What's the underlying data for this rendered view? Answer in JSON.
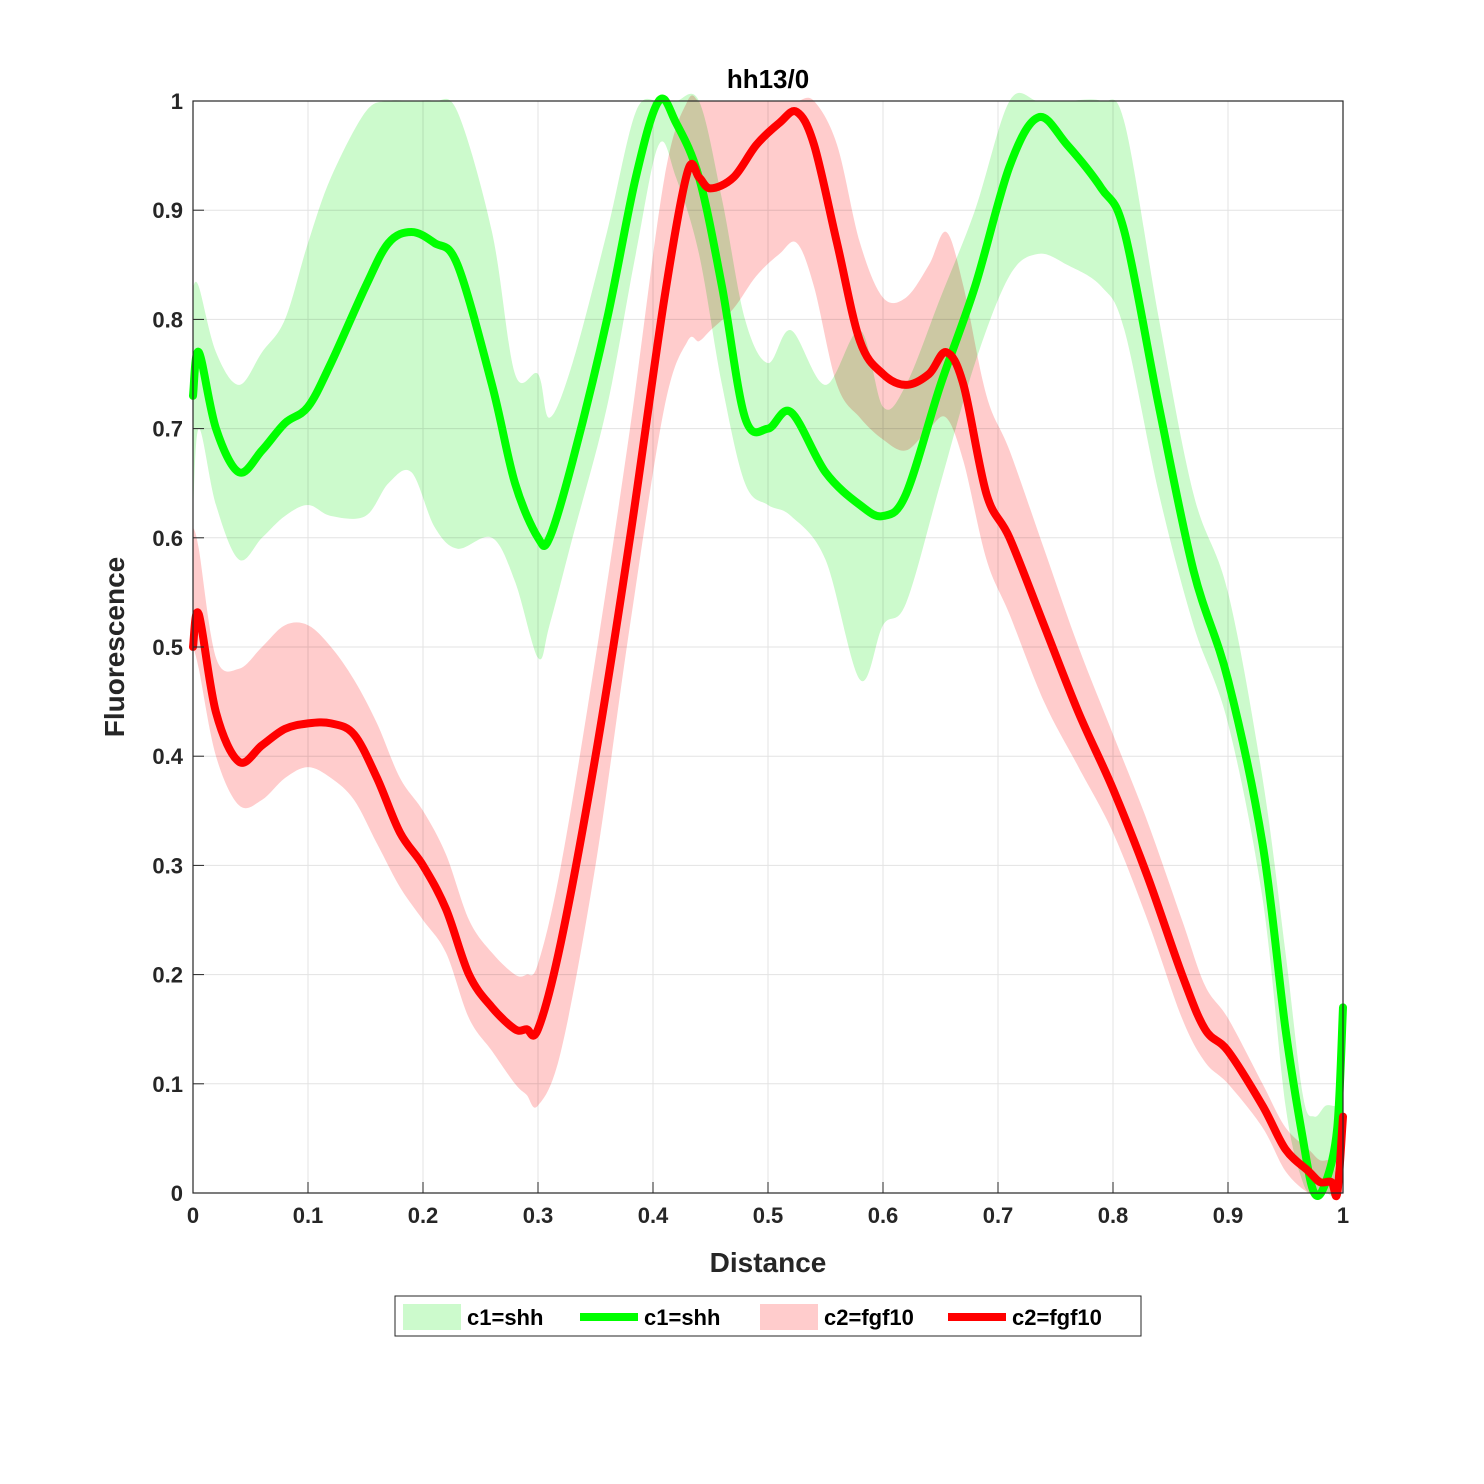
{
  "chart_data": {
    "type": "line",
    "title": "hh13/0",
    "xlabel": "Distance",
    "ylabel": "Fluorescence",
    "xlim": [
      0,
      1
    ],
    "ylim": [
      0,
      1
    ],
    "grid": true,
    "legend_placement": "bottom-outside",
    "x_ticks": [
      "0",
      "0.1",
      "0.2",
      "0.3",
      "0.4",
      "0.5",
      "0.6",
      "0.7",
      "0.8",
      "0.9",
      "1"
    ],
    "y_ticks": [
      "0",
      "0.1",
      "0.2",
      "0.3",
      "0.4",
      "0.5",
      "0.6",
      "0.7",
      "0.8",
      "0.9",
      "1"
    ],
    "legend": [
      {
        "label": "c1=shh",
        "kind": "band",
        "color": "#ccfacc"
      },
      {
        "label": "c1=shh",
        "kind": "line",
        "color": "#00ff00"
      },
      {
        "label": "c2=fgf10",
        "kind": "band",
        "color": "#ffcccc"
      },
      {
        "label": "c2=fgf10",
        "kind": "line",
        "color": "#ff0000"
      }
    ],
    "series": [
      {
        "name": "c1=shh",
        "color": "#00ff00",
        "band_color": "#ccfacc",
        "x": [
          0,
          0.005,
          0.02,
          0.04,
          0.06,
          0.08,
          0.1,
          0.12,
          0.15,
          0.17,
          0.19,
          0.21,
          0.23,
          0.26,
          0.28,
          0.3,
          0.31,
          0.33,
          0.36,
          0.385,
          0.405,
          0.42,
          0.44,
          0.46,
          0.48,
          0.5,
          0.52,
          0.55,
          0.58,
          0.6,
          0.62,
          0.65,
          0.68,
          0.71,
          0.735,
          0.76,
          0.79,
          0.81,
          0.84,
          0.87,
          0.9,
          0.93,
          0.95,
          0.965,
          0.975,
          0.985,
          0.995,
          1.0
        ],
        "y": [
          0.73,
          0.77,
          0.7,
          0.66,
          0.68,
          0.705,
          0.72,
          0.76,
          0.83,
          0.87,
          0.88,
          0.87,
          0.85,
          0.74,
          0.65,
          0.6,
          0.6,
          0.67,
          0.8,
          0.93,
          1.0,
          0.98,
          0.93,
          0.83,
          0.71,
          0.7,
          0.715,
          0.66,
          0.63,
          0.62,
          0.64,
          0.74,
          0.83,
          0.94,
          0.985,
          0.96,
          0.92,
          0.88,
          0.72,
          0.57,
          0.47,
          0.32,
          0.15,
          0.05,
          0.0,
          0.01,
          0.06,
          0.17
        ],
        "lower": [
          0.62,
          0.7,
          0.63,
          0.58,
          0.6,
          0.62,
          0.63,
          0.62,
          0.62,
          0.65,
          0.66,
          0.61,
          0.59,
          0.6,
          0.56,
          0.49,
          0.52,
          0.6,
          0.72,
          0.86,
          0.96,
          0.93,
          0.86,
          0.74,
          0.65,
          0.63,
          0.62,
          0.58,
          0.47,
          0.52,
          0.54,
          0.65,
          0.76,
          0.84,
          0.86,
          0.85,
          0.83,
          0.79,
          0.64,
          0.52,
          0.43,
          0.27,
          0.08,
          0.01,
          0.0,
          0.0,
          0.0,
          0.05
        ],
        "upper": [
          0.83,
          0.83,
          0.77,
          0.74,
          0.77,
          0.8,
          0.87,
          0.93,
          0.99,
          1.0,
          1.0,
          1.0,
          0.99,
          0.88,
          0.75,
          0.75,
          0.71,
          0.76,
          0.88,
          0.99,
          1.0,
          1.0,
          1.0,
          0.91,
          0.8,
          0.76,
          0.79,
          0.74,
          0.79,
          0.72,
          0.74,
          0.82,
          0.9,
          1.0,
          1.0,
          1.0,
          1.0,
          0.98,
          0.8,
          0.64,
          0.55,
          0.38,
          0.22,
          0.09,
          0.07,
          0.08,
          0.08,
          0.09
        ]
      },
      {
        "name": "c2=fgf10",
        "color": "#ff0000",
        "band_color": "#ffcccc",
        "x": [
          0,
          0.005,
          0.02,
          0.04,
          0.06,
          0.08,
          0.1,
          0.12,
          0.14,
          0.16,
          0.18,
          0.2,
          0.22,
          0.24,
          0.26,
          0.28,
          0.29,
          0.3,
          0.32,
          0.35,
          0.38,
          0.41,
          0.43,
          0.44,
          0.45,
          0.47,
          0.49,
          0.51,
          0.525,
          0.54,
          0.56,
          0.58,
          0.6,
          0.62,
          0.64,
          0.655,
          0.67,
          0.69,
          0.71,
          0.74,
          0.77,
          0.8,
          0.83,
          0.86,
          0.88,
          0.9,
          0.93,
          0.95,
          0.97,
          0.98,
          0.99,
          0.995,
          1.0
        ],
        "y": [
          0.5,
          0.53,
          0.44,
          0.395,
          0.41,
          0.425,
          0.43,
          0.43,
          0.42,
          0.38,
          0.33,
          0.3,
          0.26,
          0.2,
          0.17,
          0.15,
          0.15,
          0.15,
          0.23,
          0.4,
          0.6,
          0.82,
          0.935,
          0.93,
          0.92,
          0.93,
          0.96,
          0.98,
          0.99,
          0.96,
          0.87,
          0.78,
          0.75,
          0.74,
          0.75,
          0.77,
          0.74,
          0.64,
          0.6,
          0.52,
          0.44,
          0.37,
          0.29,
          0.2,
          0.15,
          0.13,
          0.08,
          0.04,
          0.02,
          0.01,
          0.01,
          0.0,
          0.07
        ],
        "lower": [
          0.5,
          0.48,
          0.4,
          0.355,
          0.36,
          0.38,
          0.39,
          0.38,
          0.36,
          0.32,
          0.28,
          0.25,
          0.22,
          0.16,
          0.13,
          0.1,
          0.09,
          0.08,
          0.13,
          0.3,
          0.52,
          0.72,
          0.78,
          0.78,
          0.79,
          0.81,
          0.84,
          0.86,
          0.87,
          0.83,
          0.74,
          0.71,
          0.69,
          0.68,
          0.7,
          0.71,
          0.67,
          0.58,
          0.53,
          0.45,
          0.39,
          0.33,
          0.25,
          0.16,
          0.12,
          0.1,
          0.06,
          0.02,
          0.0,
          0.0,
          0.0,
          0.0,
          0.0
        ],
        "upper": [
          0.61,
          0.59,
          0.49,
          0.48,
          0.5,
          0.52,
          0.52,
          0.5,
          0.47,
          0.43,
          0.38,
          0.35,
          0.31,
          0.25,
          0.22,
          0.2,
          0.2,
          0.21,
          0.3,
          0.49,
          0.7,
          0.93,
          1.0,
          1.0,
          1.0,
          1.0,
          1.0,
          1.0,
          1.0,
          1.0,
          0.96,
          0.87,
          0.82,
          0.82,
          0.85,
          0.88,
          0.83,
          0.73,
          0.68,
          0.59,
          0.5,
          0.42,
          0.34,
          0.25,
          0.19,
          0.16,
          0.1,
          0.06,
          0.04,
          0.03,
          0.03,
          0.02,
          0.08
        ]
      }
    ]
  }
}
